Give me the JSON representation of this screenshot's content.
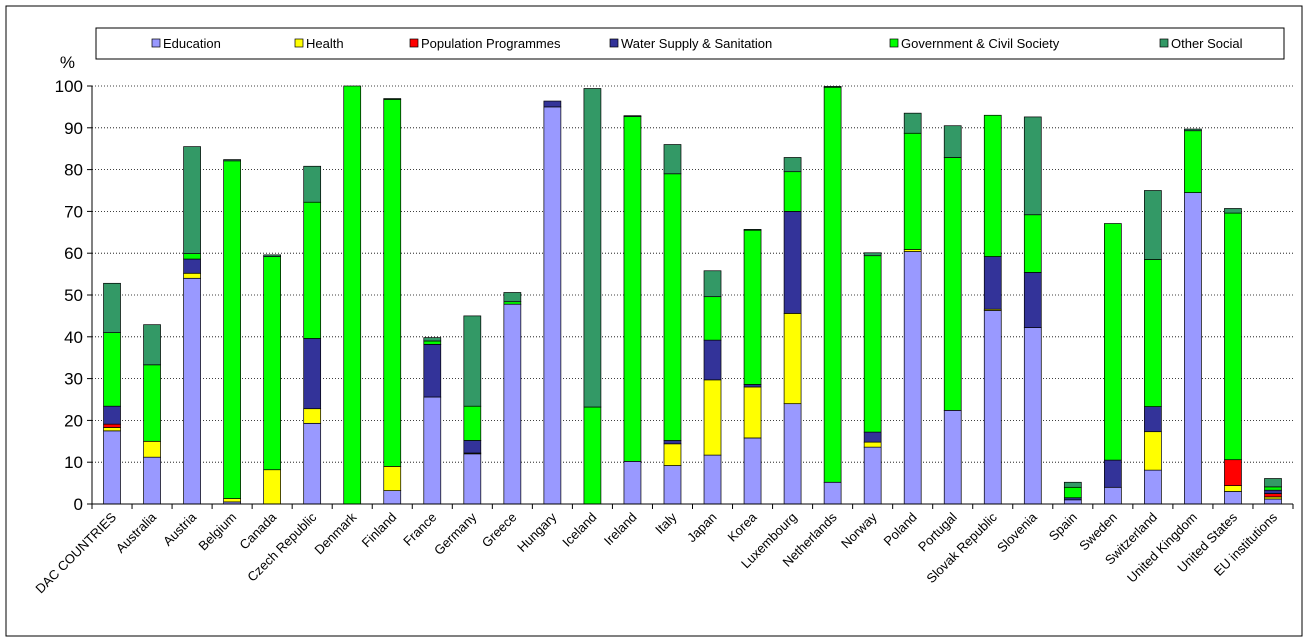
{
  "chart_data": {
    "type": "bar",
    "stacked": true,
    "ylabel": "%",
    "ylim": [
      0,
      100
    ],
    "yticks": [
      0,
      10,
      20,
      30,
      40,
      50,
      60,
      70,
      80,
      90,
      100
    ],
    "grid": "horizontal-dotted",
    "legend_position": "top",
    "categories": [
      "DAC COUNTRIES",
      "Australia",
      "Austria",
      "Belgium",
      "Canada",
      "Czech Republic",
      "Denmark",
      "Finland",
      "France",
      "Germany",
      "Greece",
      "Hungary",
      "Iceland",
      "Ireland",
      "Italy",
      "Japan",
      "Korea",
      "Luxembourg",
      "Netherlands",
      "Norway",
      "Poland",
      "Portugal",
      "Slovak Republic",
      "Slovenia",
      "Spain",
      "Sweden",
      "Switzerland",
      "United Kingdom",
      "United States",
      "EU institutions"
    ],
    "series": [
      {
        "name": "Education",
        "color": "#9999ff",
        "values": [
          17.5,
          11.2,
          54.0,
          0.5,
          0.0,
          19.3,
          0.0,
          3.2,
          25.6,
          12.0,
          47.8,
          95.0,
          0.0,
          10.2,
          9.2,
          11.7,
          15.8,
          24.0,
          5.2,
          13.6,
          60.4,
          22.4,
          46.3,
          42.2,
          1.0,
          4.0,
          8.1,
          74.5,
          3.0,
          1.2
        ]
      },
      {
        "name": "Health",
        "color": "#ffff00",
        "values": [
          0.8,
          3.8,
          1.2,
          0.8,
          8.2,
          3.5,
          0.0,
          5.8,
          0.0,
          0.2,
          0.0,
          0.0,
          0.0,
          0.0,
          5.2,
          18.0,
          12.2,
          21.6,
          0.0,
          1.2,
          0.5,
          0.0,
          0.3,
          0.0,
          0.0,
          0.0,
          9.2,
          0.0,
          1.4,
          0.5
        ]
      },
      {
        "name": "Population Programmes",
        "color": "#ff0000",
        "values": [
          0.8,
          0.0,
          0.0,
          0.0,
          0.0,
          0.0,
          0.0,
          0.0,
          0.0,
          0.0,
          0.0,
          0.0,
          0.0,
          0.0,
          0.0,
          0.0,
          0.0,
          0.0,
          0.0,
          0.0,
          0.0,
          0.0,
          0.0,
          0.0,
          0.0,
          0.0,
          0.0,
          0.0,
          6.2,
          0.8
        ]
      },
      {
        "name": "Water Supply & Sanitation",
        "color": "#333399",
        "values": [
          4.3,
          0.0,
          3.4,
          0.0,
          0.0,
          16.8,
          0.0,
          0.0,
          12.6,
          3.0,
          0.0,
          1.4,
          0.0,
          0.0,
          0.8,
          9.5,
          0.6,
          24.4,
          0.0,
          2.4,
          0.0,
          0.0,
          12.6,
          13.2,
          0.5,
          6.5,
          6.0,
          0.0,
          0.0,
          0.8
        ]
      },
      {
        "name": "Government & Civil Society",
        "color": "#00ff00",
        "values": [
          17.6,
          18.3,
          1.3,
          80.8,
          51.0,
          32.6,
          100.0,
          87.8,
          0.8,
          8.2,
          0.6,
          0.0,
          23.2,
          82.5,
          63.8,
          10.4,
          36.9,
          9.5,
          94.5,
          42.2,
          27.8,
          60.5,
          33.8,
          13.8,
          2.5,
          56.6,
          35.2,
          14.8,
          59.0,
          0.8
        ]
      },
      {
        "name": "Other Social",
        "color": "#339966",
        "values": [
          11.8,
          9.6,
          25.6,
          0.3,
          0.4,
          8.6,
          0.0,
          0.2,
          0.8,
          21.6,
          2.2,
          0.0,
          76.2,
          0.2,
          7.0,
          6.2,
          0.2,
          3.4,
          0.2,
          0.7,
          4.8,
          7.6,
          0.0,
          23.4,
          1.2,
          0.0,
          16.5,
          0.4,
          1.1,
          2.0
        ]
      }
    ]
  }
}
